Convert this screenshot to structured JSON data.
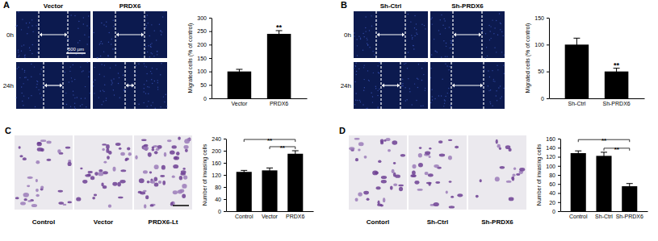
{
  "panels": [
    {
      "label": "A",
      "columns": [
        "Vector",
        "PRDX6"
      ],
      "rows": [
        "0h",
        "24h"
      ],
      "scale_bar": "500 µm"
    },
    {
      "label": "B",
      "columns": [
        "Sh-Ctrl",
        "Sh-PRDX6"
      ],
      "rows": [
        "0h",
        "24h"
      ]
    },
    {
      "label": "C",
      "columns": [
        "Control",
        "Vector",
        "PRDX6-Lt"
      ]
    },
    {
      "label": "D",
      "columns": [
        "Contorl",
        "Sh-Ctrl",
        "Sh-PRDX6"
      ]
    }
  ],
  "chart_data": [
    {
      "type": "bar",
      "categories": [
        "Vector",
        "PRDX6"
      ],
      "values": [
        100,
        240
      ],
      "errors": [
        8,
        12
      ],
      "color": "#000000",
      "y_label": "Migrated cells (% of control)",
      "ylim": [
        0,
        300
      ],
      "yticks": [
        0,
        50,
        100,
        150,
        200,
        250,
        300
      ],
      "grid": false,
      "annotations": [
        {
          "text": "**",
          "category": "PRDX6"
        }
      ]
    },
    {
      "type": "bar",
      "categories": [
        "Sh-Ctrl",
        "Sh-PRDX6"
      ],
      "values": [
        100,
        50
      ],
      "errors": [
        12,
        6
      ],
      "color": "#000000",
      "y_label": "Migrated cells (% of control)",
      "ylim": [
        0,
        150
      ],
      "yticks": [
        0,
        50,
        100,
        150
      ],
      "grid": false,
      "annotations": [
        {
          "text": "**",
          "category": "Sh-PRDX6"
        }
      ]
    },
    {
      "type": "bar",
      "categories": [
        "Control",
        "Vector",
        "PRDX6"
      ],
      "values": [
        130,
        135,
        190
      ],
      "errors": [
        5,
        8,
        10
      ],
      "color": "#000000",
      "y_label": "Number of invasing cells",
      "ylim": [
        0,
        240
      ],
      "yticks": [
        0,
        40,
        80,
        120,
        160,
        200,
        240
      ],
      "grid": false,
      "annotations": [
        {
          "text": "**",
          "between": [
            "Vector",
            "PRDX6"
          ]
        },
        {
          "text": "**",
          "between": [
            "Control",
            "PRDX6"
          ]
        }
      ]
    },
    {
      "type": "bar",
      "categories": [
        "Control",
        "Sh-Ctrl",
        "Sh-PRDX6"
      ],
      "values": [
        128,
        122,
        55
      ],
      "errors": [
        5,
        8,
        6
      ],
      "color": "#000000",
      "y_label": "Number of invasing cells",
      "ylim": [
        0,
        160
      ],
      "yticks": [
        0,
        20,
        40,
        60,
        80,
        100,
        120,
        140,
        160
      ],
      "grid": false,
      "annotations": [
        {
          "text": "**",
          "between": [
            "Sh-Ctrl",
            "Sh-PRDX6"
          ]
        },
        {
          "text": "**",
          "between": [
            "Control",
            "Sh-PRDX6"
          ]
        }
      ]
    }
  ]
}
